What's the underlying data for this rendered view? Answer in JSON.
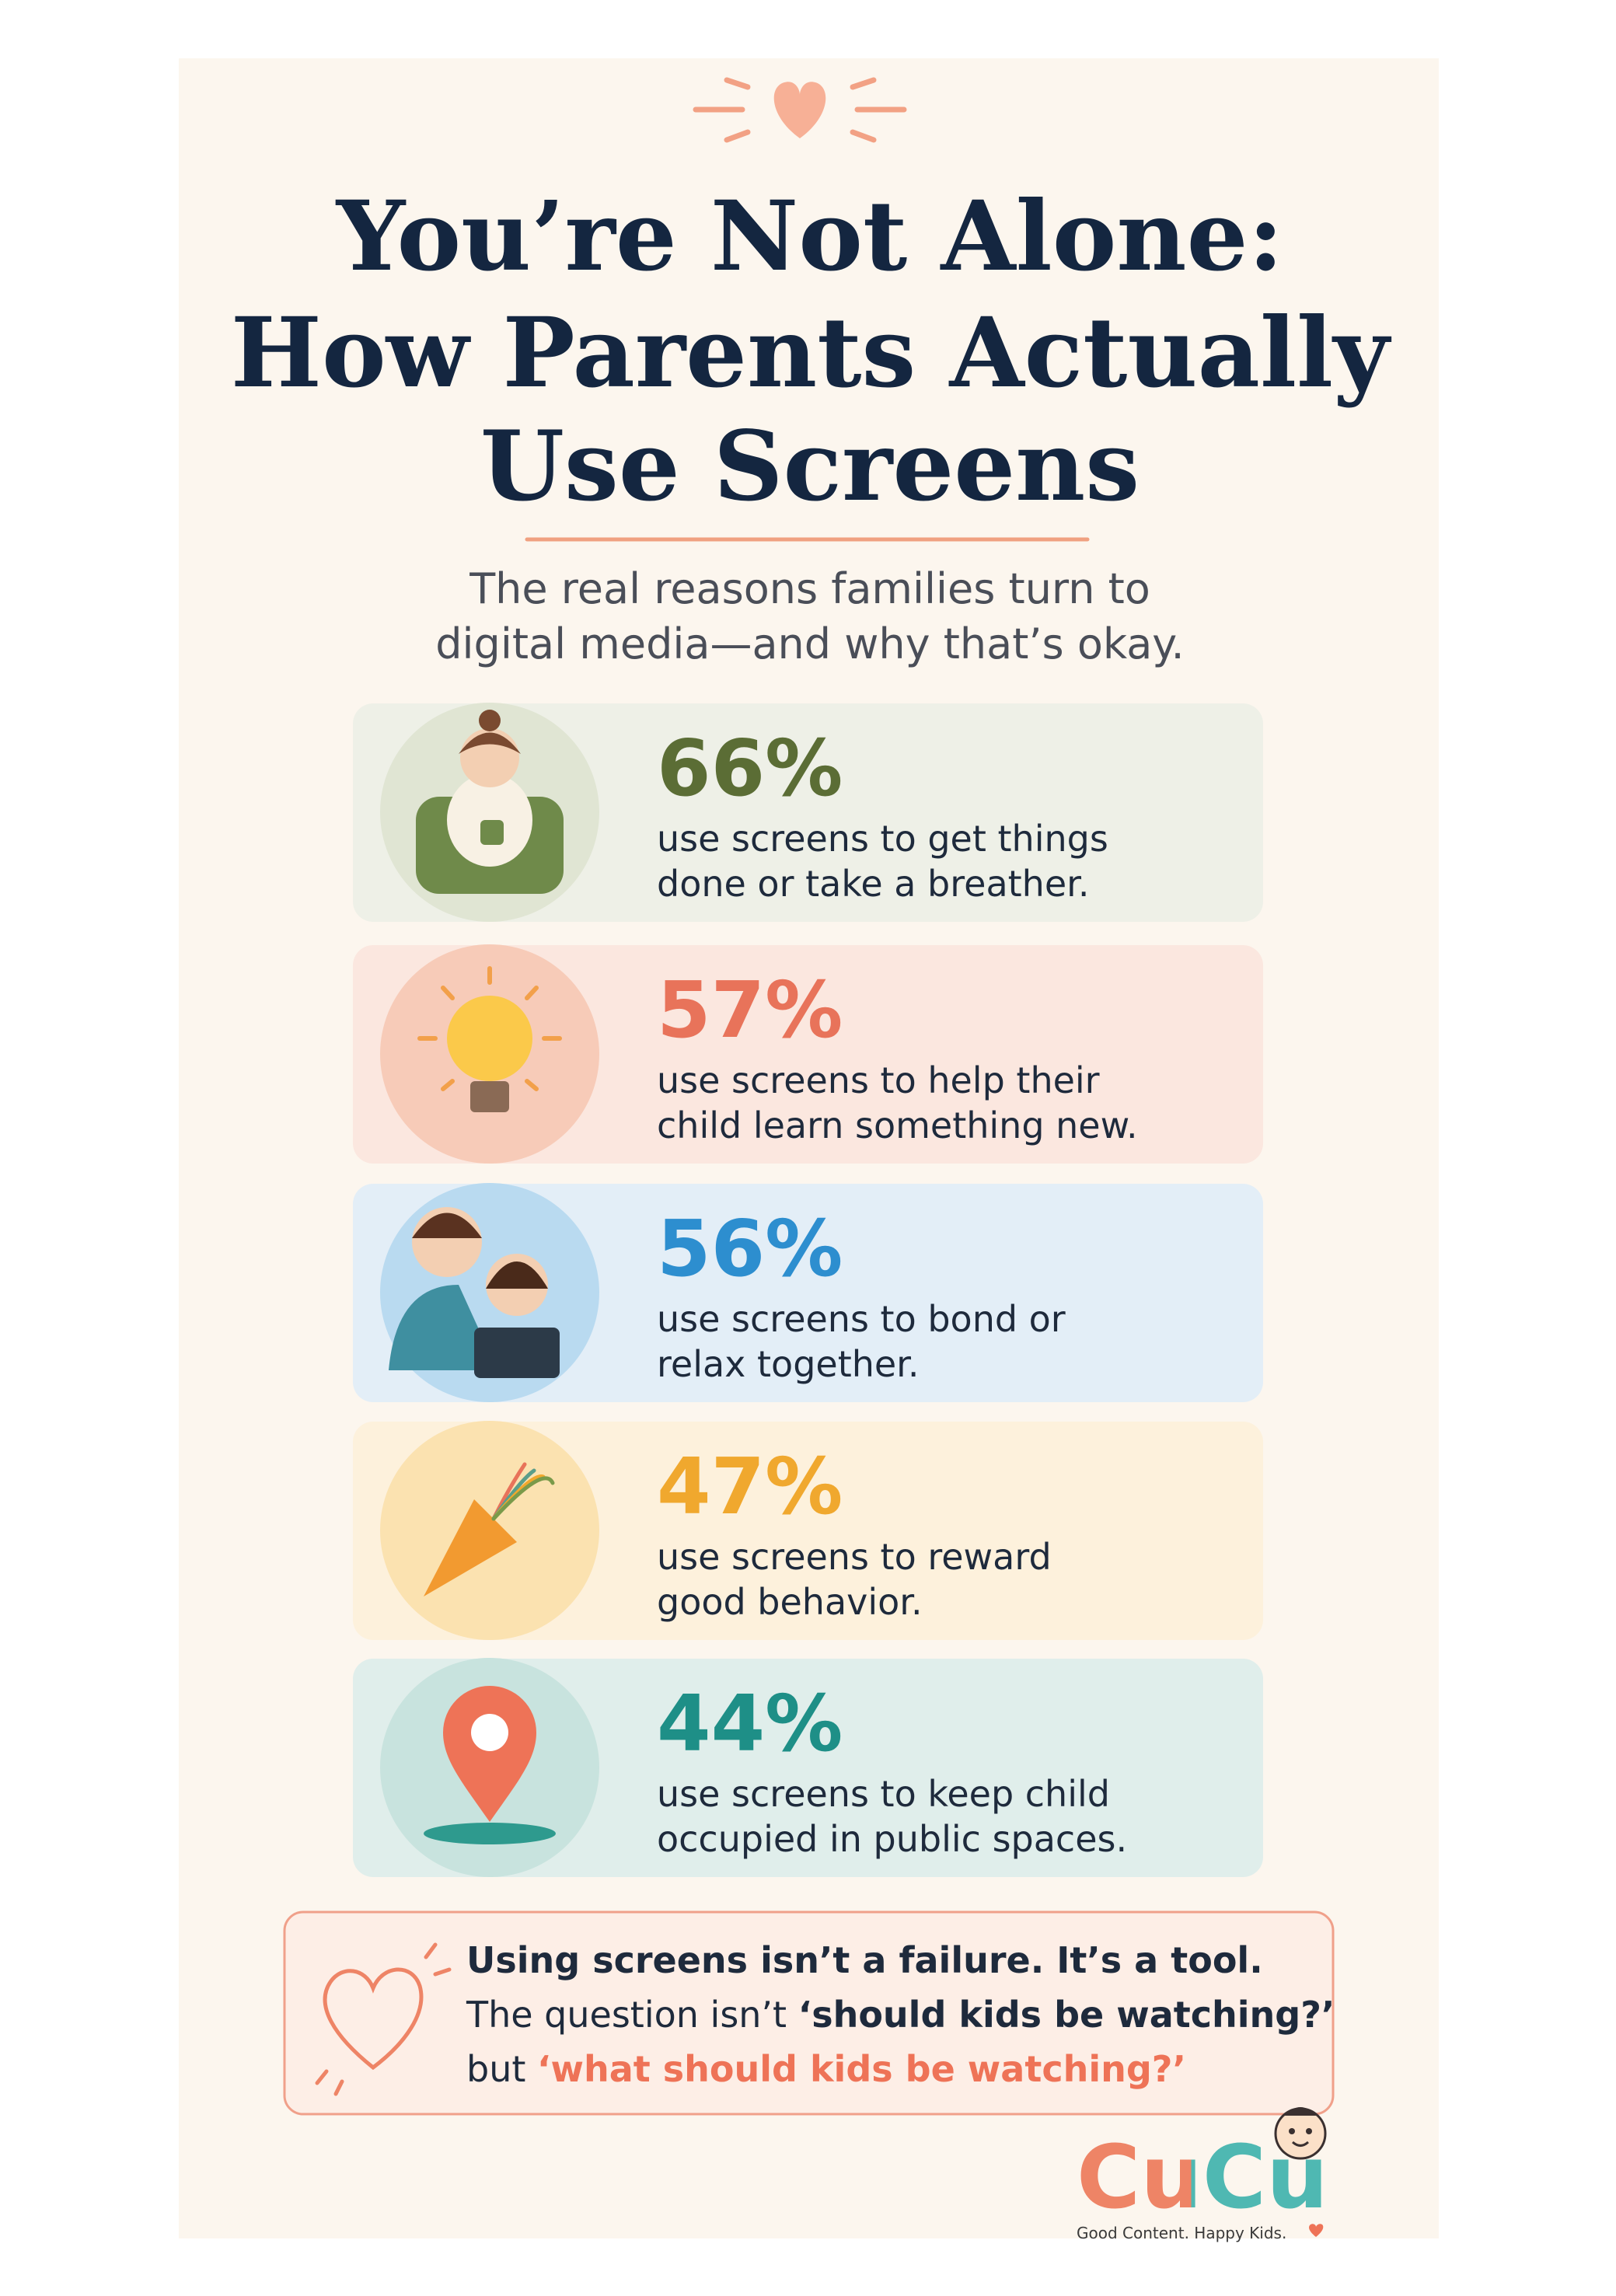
{
  "header": {
    "title_lines": [
      "You’re Not Alone:",
      "How Parents Actually",
      "Use Screens"
    ],
    "subtitle_lines": [
      "The real reasons families turn to",
      "digital media—and why that’s okay."
    ]
  },
  "stats": [
    {
      "value": "66%",
      "text_lines": [
        "use screens to get things",
        "done or take a breather."
      ]
    },
    {
      "value": "57%",
      "text_lines": [
        "use screens to help their",
        "child learn something new."
      ]
    },
    {
      "value": "56%",
      "text_lines": [
        "use screens to bond or",
        "relax together."
      ]
    },
    {
      "value": "47%",
      "text_lines": [
        "use screens to reward",
        "good behavior."
      ]
    },
    {
      "value": "44%",
      "text_lines": [
        "use screens to keep child",
        "occupied in public spaces."
      ]
    }
  ],
  "callout": {
    "line1": "Using screens isn’t a failure. It’s a tool.",
    "line2": [
      "The question isn’t ",
      "‘should kids be watching?’"
    ],
    "line3": [
      "but ",
      "‘what should kids be watching?’"
    ]
  },
  "brand": {
    "name": "CuCu",
    "tagline": "Good Content. Happy Kids."
  }
}
